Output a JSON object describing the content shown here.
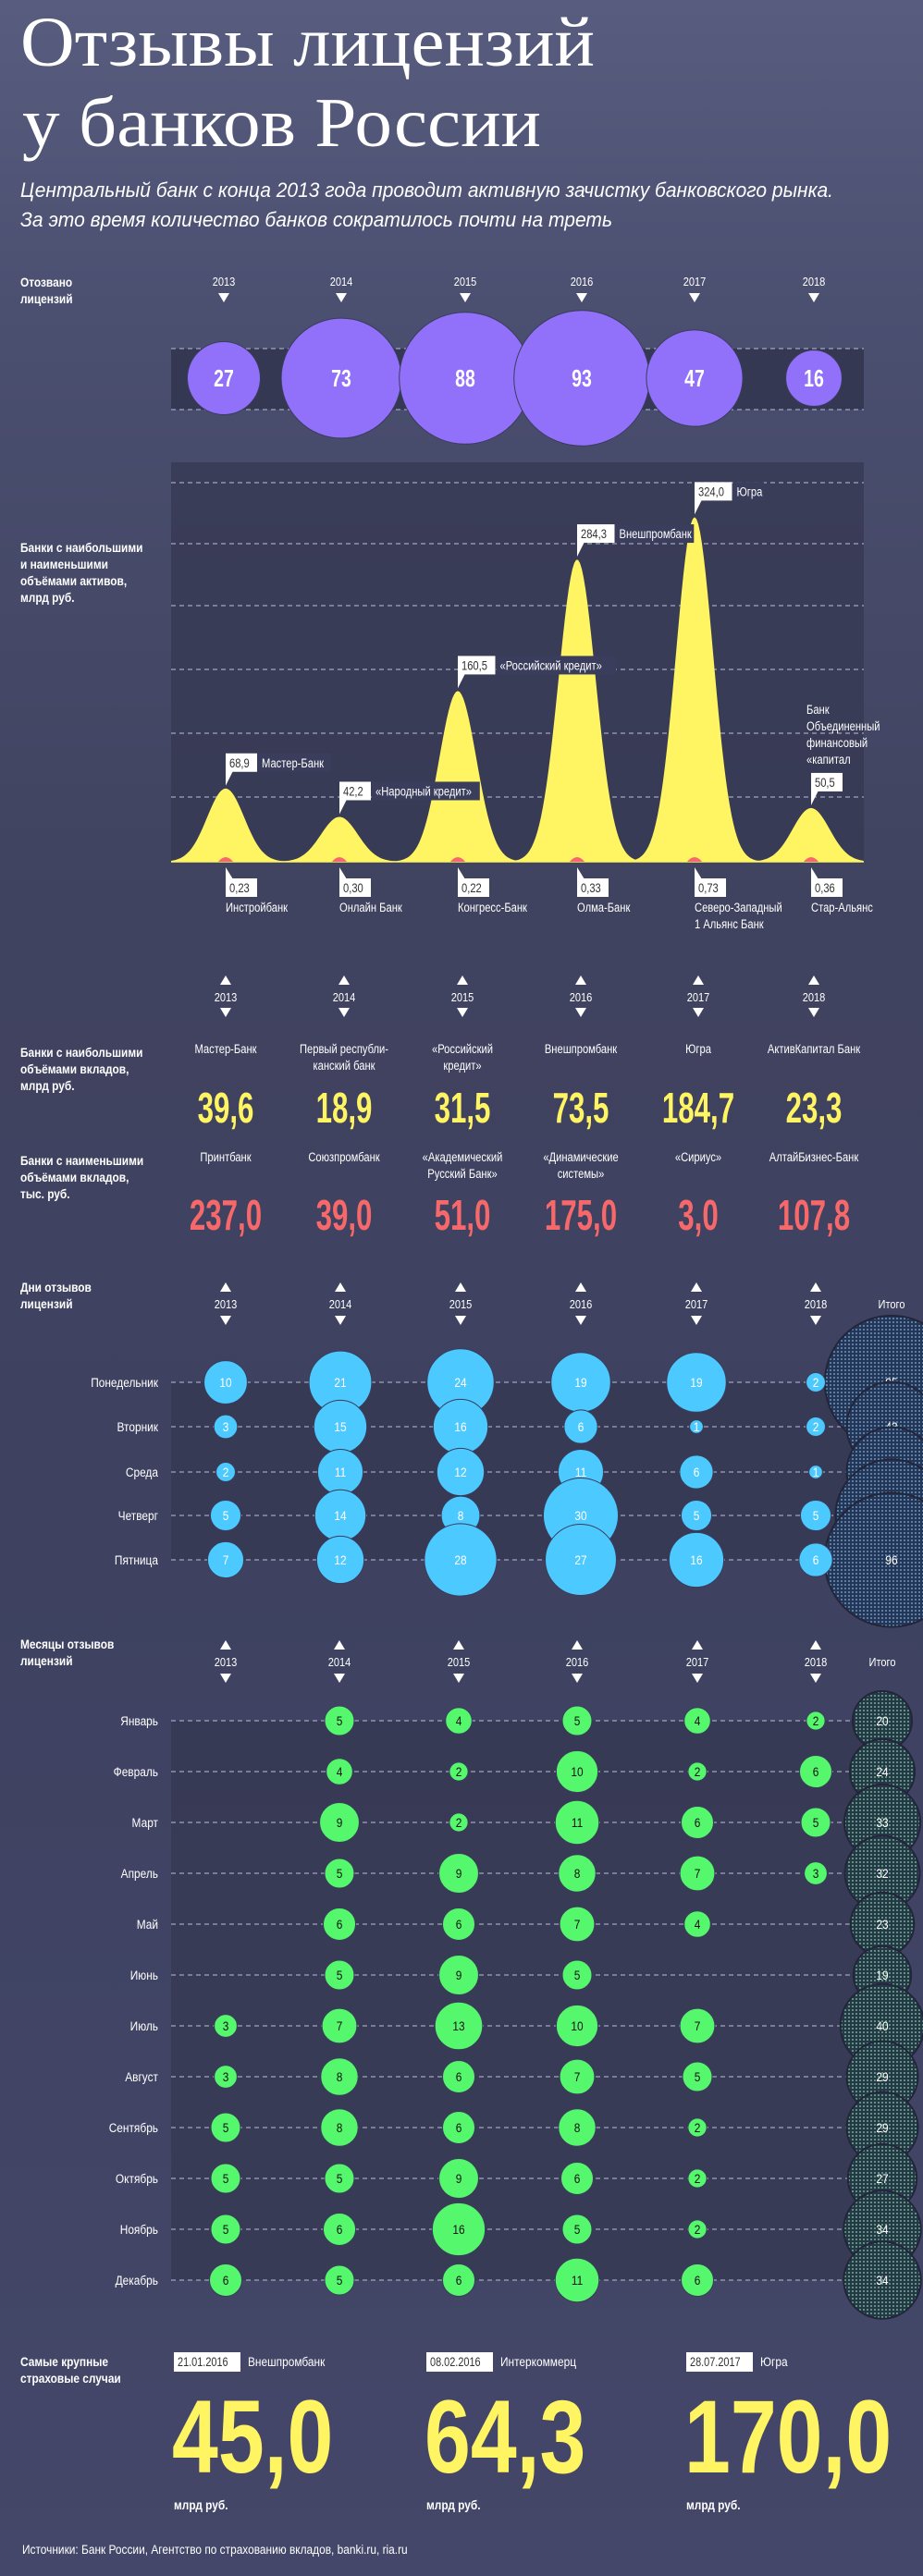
{
  "title": {
    "line1": "Отзывы лицензий",
    "line2": "у банков России"
  },
  "subtitle": {
    "line1": "Центральный банк с конца 2013 года проводит активную зачистку банковского рынка.",
    "line2": "За это время количество банков сократилось почти на треть"
  },
  "colors": {
    "purple": "#9170fa",
    "yellow": "#fff462",
    "red": "#f7686b",
    "cyan": "#4cc9fe",
    "green": "#55f86c",
    "band": "#353852"
  },
  "chart_data": [
    {
      "type": "scatter",
      "title_lines": [
        "Отозвано",
        "лицензий"
      ],
      "categories": [
        "2013",
        "2014",
        "2015",
        "2016",
        "2017",
        "2018"
      ],
      "values": [
        27,
        73,
        88,
        93,
        47,
        16
      ]
    },
    {
      "type": "area",
      "title_lines": [
        "Банки с наибольшими",
        "и наименьшими",
        "объёмами активов,",
        "млрд руб."
      ],
      "series": [
        {
          "name": "max",
          "values": [
            68.9,
            42.2,
            160.5,
            284.3,
            324.0,
            50.5
          ],
          "labels": [
            "68,9",
            "42,2",
            "160,5",
            "284,3",
            "324,0",
            "50,5"
          ],
          "banks": [
            [
              "Мастер-Банк"
            ],
            [
              "«Народный кредит»"
            ],
            [
              "«Российский кредит»"
            ],
            [
              "Внешпромбанк"
            ],
            [
              "Югра"
            ],
            [
              "Банк",
              "Объединенный",
              "финансовый",
              "«капитал"
            ]
          ]
        },
        {
          "name": "min",
          "values": [
            0.23,
            0.3,
            0.22,
            0.33,
            0.73,
            0.36
          ],
          "labels": [
            "0,23",
            "0,30",
            "0,22",
            "0,33",
            "0,73",
            "0,36"
          ],
          "banks": [
            [
              "Инстройбанк"
            ],
            [
              "Онлайн Банк"
            ],
            [
              "Конгресс-Банк"
            ],
            [
              "Олма-Банк"
            ],
            [
              "Северо-Западный",
              "1 Альянс Банк"
            ],
            [
              "Стар-Альянс"
            ]
          ]
        }
      ]
    },
    {
      "type": "table",
      "categories": [
        "2013",
        "2014",
        "2015",
        "2016",
        "2017",
        "2018"
      ],
      "rows": [
        {
          "title_lines": [
            "Банки с наибольшими",
            "объёмами вкладов,",
            "млрд руб."
          ],
          "banks": [
            [
              "Мастер-Банк"
            ],
            [
              "Первый республи-",
              "канский банк"
            ],
            [
              "«Российский",
              "кредит»"
            ],
            [
              "Внешпромбанк"
            ],
            [
              "Югра"
            ],
            [
              "АктивКапитал Банк"
            ]
          ],
          "values": [
            "39,6",
            "18,9",
            "31,5",
            "73,5",
            "184,7",
            "23,3"
          ]
        },
        {
          "title_lines": [
            "Банки с наименьшими",
            "объёмами вкладов,",
            "тыс. руб."
          ],
          "banks": [
            [
              "Принтбанк"
            ],
            [
              "Союзпромбанк"
            ],
            [
              "«Академический",
              "Русский Банк»"
            ],
            [
              "«Динамические",
              "системы»"
            ],
            [
              "«Сириус»"
            ],
            [
              "АлтайБизнес-Банк"
            ]
          ],
          "values": [
            "237,0",
            "39,0",
            "51,0",
            "175,0",
            "3,0",
            "107,8"
          ]
        }
      ]
    },
    {
      "type": "scatter",
      "title_lines": [
        "Дни отзывов",
        "лицензий"
      ],
      "categories": [
        "2013",
        "2014",
        "2015",
        "2016",
        "2017",
        "2018"
      ],
      "total_label": "Итого",
      "rows": [
        {
          "label": "Понедельник",
          "values": [
            10,
            21,
            24,
            19,
            19,
            2
          ],
          "total": 95
        },
        {
          "label": "Вторник",
          "values": [
            3,
            15,
            16,
            6,
            1,
            2
          ],
          "total": 43
        },
        {
          "label": "Среда",
          "values": [
            2,
            11,
            12,
            11,
            6,
            1
          ],
          "total": 43
        },
        {
          "label": "Четверг",
          "values": [
            5,
            14,
            8,
            30,
            5,
            5
          ],
          "total": 67
        },
        {
          "label": "Пятница",
          "values": [
            7,
            12,
            28,
            27,
            16,
            6
          ],
          "total": 96
        }
      ]
    },
    {
      "type": "scatter",
      "title_lines": [
        "Месяцы отзывов",
        "лицензий"
      ],
      "categories": [
        "2013",
        "2014",
        "2015",
        "2016",
        "2017",
        "2018"
      ],
      "total_label": "Итого",
      "rows": [
        {
          "label": "Январь",
          "values": [
            null,
            5,
            4,
            5,
            4,
            2
          ],
          "total": 20
        },
        {
          "label": "Февраль",
          "values": [
            null,
            4,
            2,
            10,
            2,
            6
          ],
          "total": 24
        },
        {
          "label": "Март",
          "values": [
            null,
            9,
            2,
            11,
            6,
            5
          ],
          "total": 33
        },
        {
          "label": "Апрель",
          "values": [
            null,
            5,
            9,
            8,
            7,
            3
          ],
          "total": 32
        },
        {
          "label": "Май",
          "values": [
            null,
            6,
            6,
            7,
            4,
            null
          ],
          "total": 23
        },
        {
          "label": "Июнь",
          "values": [
            null,
            5,
            9,
            5,
            null,
            null
          ],
          "total": 19
        },
        {
          "label": "Июль",
          "values": [
            3,
            7,
            13,
            10,
            7,
            null
          ],
          "total": 40
        },
        {
          "label": "Август",
          "values": [
            3,
            8,
            6,
            7,
            5,
            null
          ],
          "total": 29
        },
        {
          "label": "Сентябрь",
          "values": [
            5,
            8,
            6,
            8,
            2,
            null
          ],
          "total": 29
        },
        {
          "label": "Октябрь",
          "values": [
            5,
            5,
            9,
            6,
            2,
            null
          ],
          "total": 27
        },
        {
          "label": "Ноябрь",
          "values": [
            5,
            6,
            16,
            5,
            2,
            null
          ],
          "total": 34
        },
        {
          "label": "Декабрь",
          "values": [
            6,
            5,
            6,
            11,
            6,
            null
          ],
          "total": 34
        }
      ]
    }
  ],
  "insurance": {
    "title_lines": [
      "Самые крупные",
      "страховые случаи"
    ],
    "cases": [
      {
        "date": "21.01.2016",
        "bank": "Внешпромбанк",
        "value": "45,0",
        "unit": "млрд руб."
      },
      {
        "date": "08.02.2016",
        "bank": "Интеркоммерц",
        "value": "64,3",
        "unit": "млрд руб."
      },
      {
        "date": "28.07.2017",
        "bank": "Югра",
        "value": "170,0",
        "unit": "млрд руб."
      }
    ]
  },
  "sources": "Источники: Банк России, Агентство по страхованию вкладов, banki.ru, ria.ru"
}
